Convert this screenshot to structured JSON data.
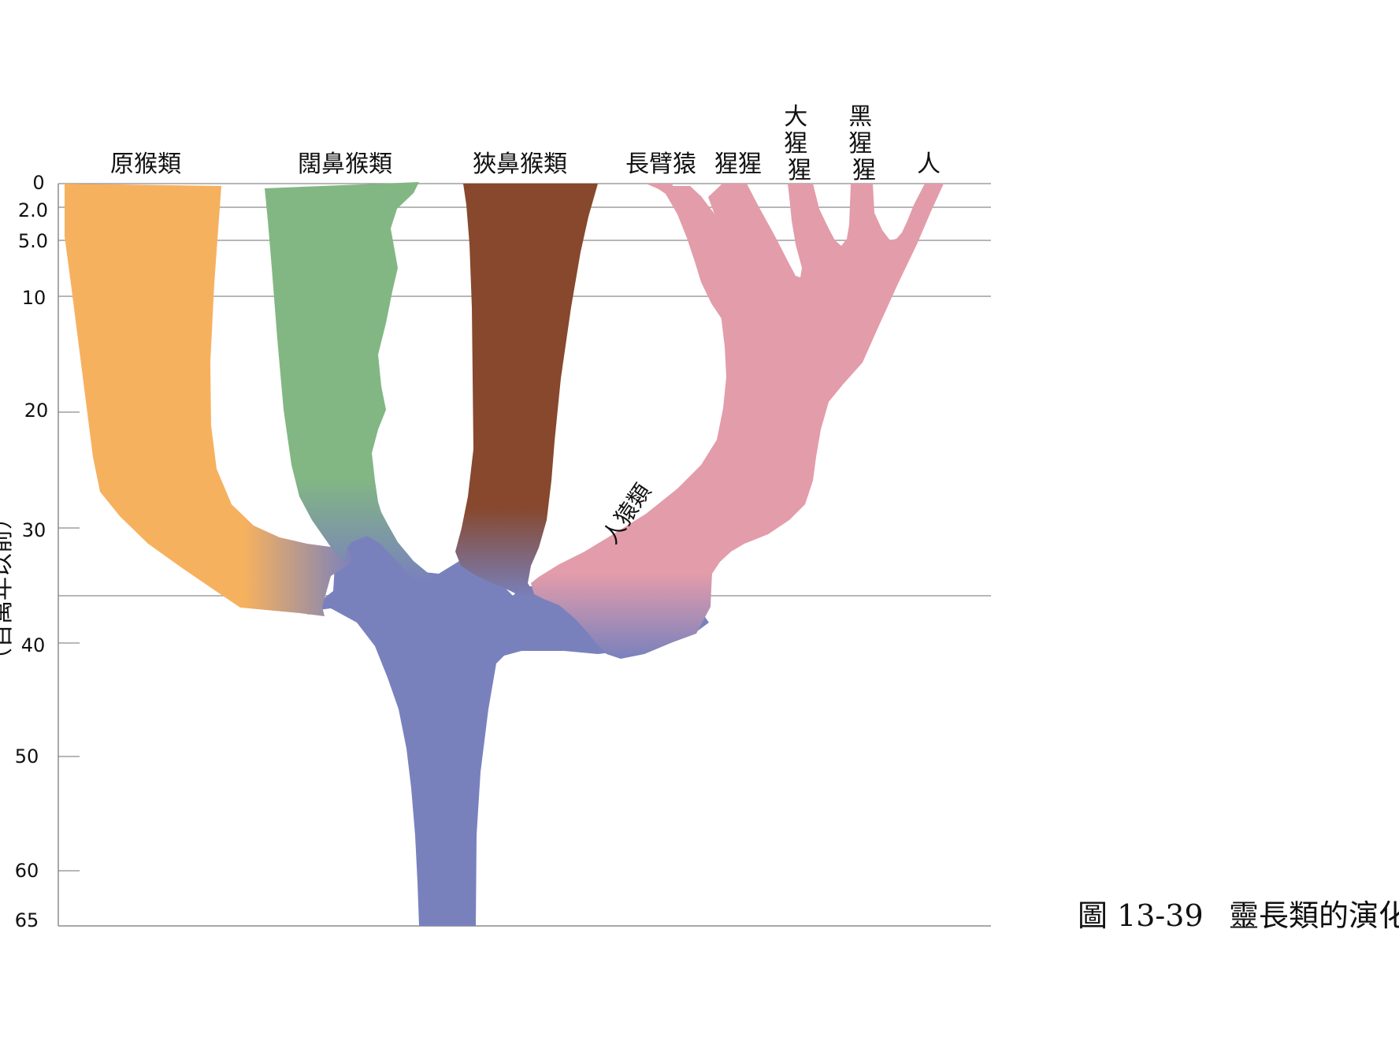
{
  "axis": {
    "title": "（百萬年以前）",
    "ticks": [
      "0",
      "2.0",
      "5.0",
      "10",
      "20",
      "30",
      "40",
      "50",
      "60",
      "65"
    ]
  },
  "clades": {
    "prosimians": "原猴類",
    "platyrrhines": "闊鼻猴類",
    "catarrhines": "狹鼻猴類",
    "gibbon": "長臂猿",
    "orangutan": "猩猩",
    "gorilla": "大猩猩",
    "chimpanzee": "黑猩猩",
    "human": "人"
  },
  "branch_labels": {
    "hominoids": "人猿類"
  },
  "caption": {
    "figure": "圖 13-39",
    "title": "靈長類的演化"
  },
  "colors": {
    "prosimians": "#F6B15F",
    "platyrrhines": "#82B783",
    "catarrhines": "#87482D",
    "hominoids": "#E39CAA",
    "ancestor": "#7981BD",
    "grid": "#8C8C8C"
  }
}
